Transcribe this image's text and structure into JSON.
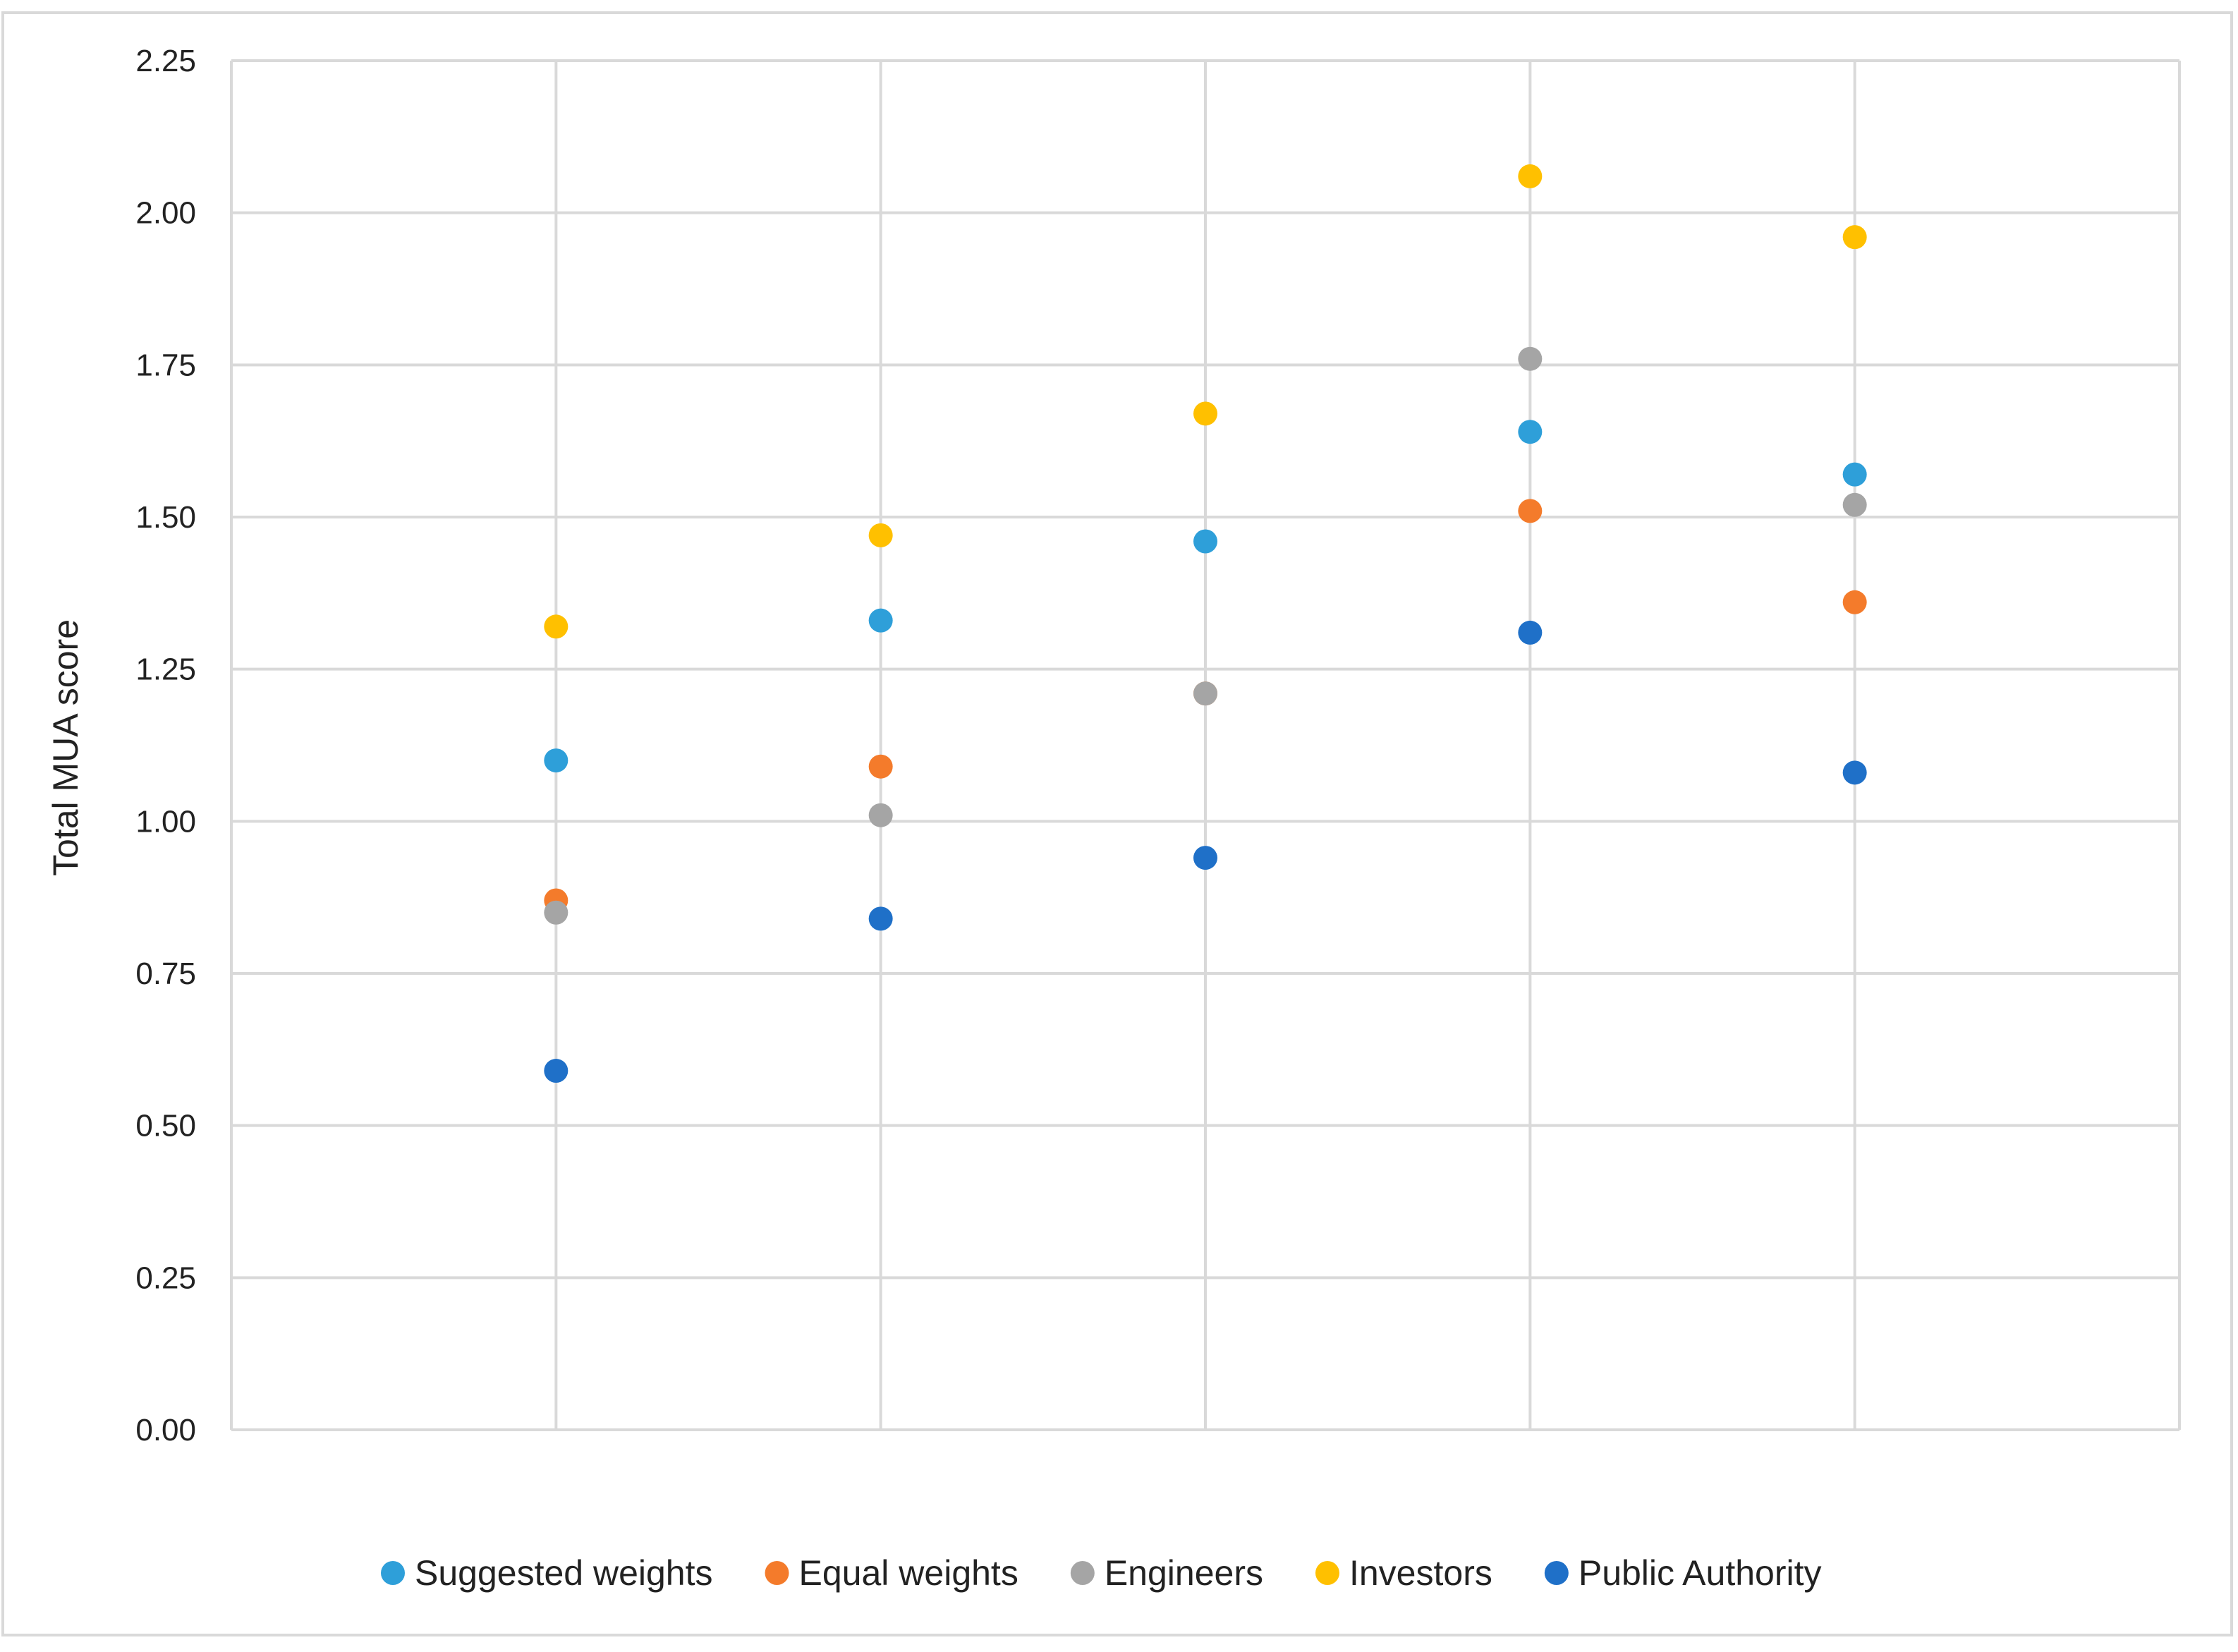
{
  "chart_data": {
    "type": "scatter",
    "title": "",
    "xlabel": "",
    "ylabel": "Total MUA score",
    "ylim": [
      0,
      2.25
    ],
    "yticks": [
      "0.00",
      "0.25",
      "0.50",
      "0.75",
      "1.00",
      "1.25",
      "1.50",
      "1.75",
      "2.00",
      "2.25"
    ],
    "x": [
      1,
      2,
      3,
      4,
      5
    ],
    "xlim": [
      0,
      6
    ],
    "grid": true,
    "legend_position": "bottom",
    "series": [
      {
        "name": "Suggested weights",
        "color": "#2E9FD9",
        "values": [
          1.1,
          1.33,
          1.46,
          1.64,
          1.57
        ]
      },
      {
        "name": "Equal weights",
        "color": "#F47B2B",
        "values": [
          0.87,
          1.09,
          1.21,
          1.51,
          1.36
        ]
      },
      {
        "name": "Engineers",
        "color": "#A5A5A5",
        "values": [
          0.85,
          1.01,
          1.21,
          1.76,
          1.52
        ]
      },
      {
        "name": "Investors",
        "color": "#FFC000",
        "values": [
          1.32,
          1.47,
          1.67,
          2.06,
          1.96
        ]
      },
      {
        "name": "Public Authority",
        "color": "#1F70C8",
        "values": [
          0.59,
          0.84,
          0.94,
          1.31,
          1.08
        ]
      }
    ]
  }
}
